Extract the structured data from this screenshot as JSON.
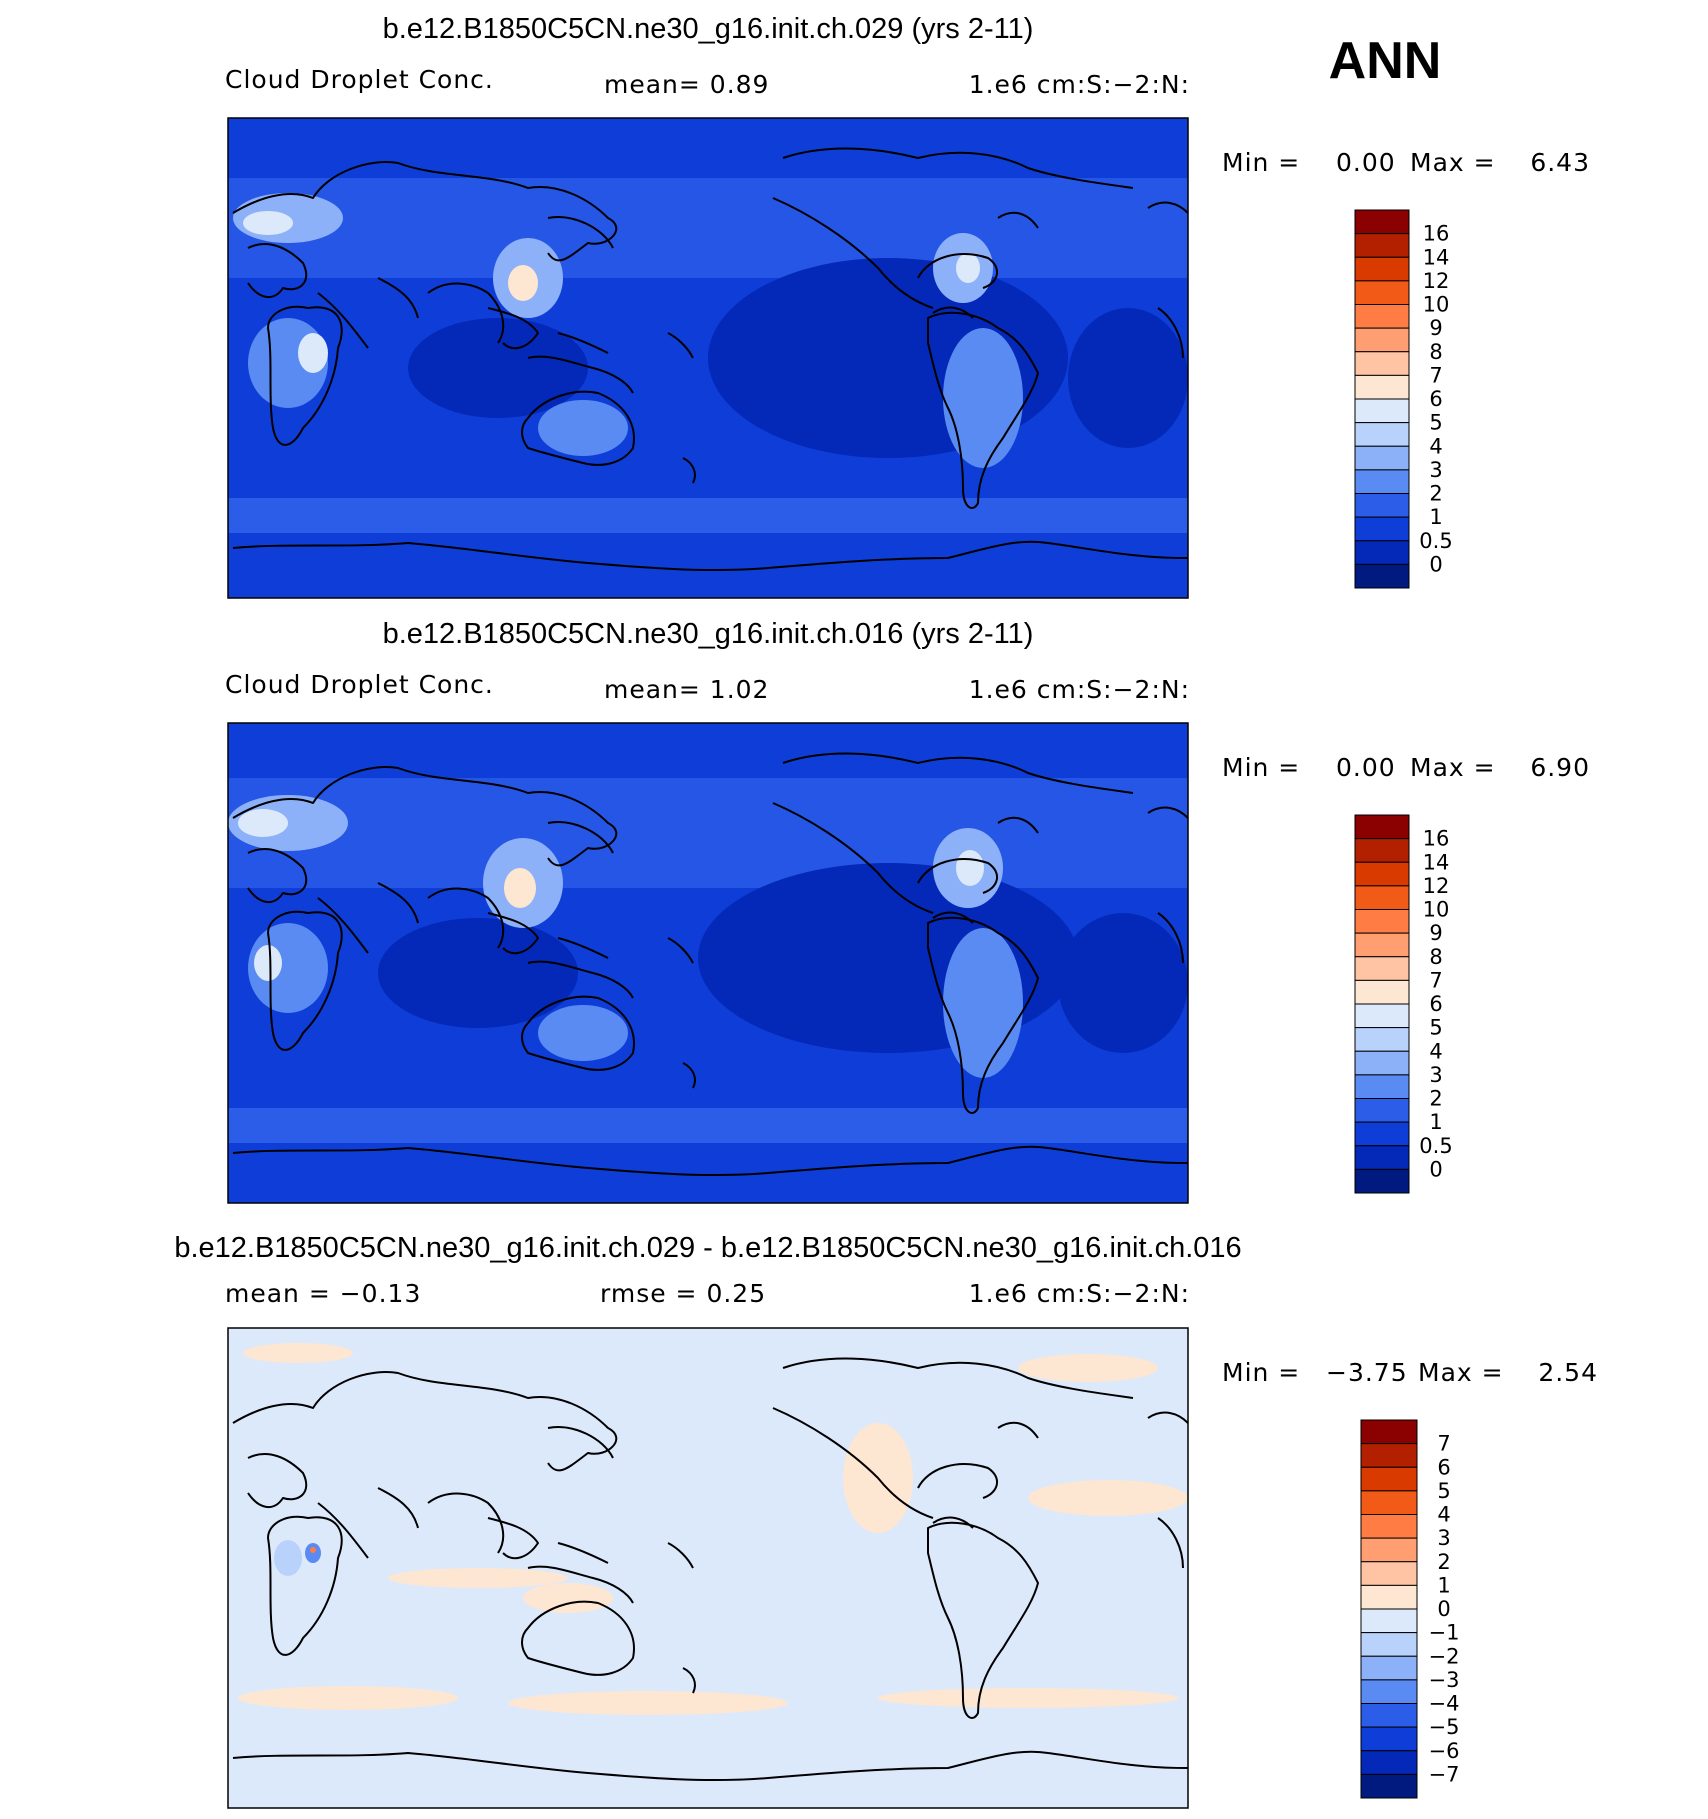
{
  "season_label": "ANN",
  "panels": [
    {
      "title": "b.e12.B1850C5CN.ne30_g16.init.ch.029 (yrs 2-11)",
      "left_label": "Cloud Droplet Conc.",
      "mid_label": "mean=    0.89",
      "right_label": "1.e6 cm:S:−2:N:",
      "min_text": "Min =",
      "min_value": "0.00",
      "max_text": "Max =",
      "max_value": "6.43",
      "field_min": 0.0,
      "field_max": 6.43,
      "colorbar": {
        "labels": [
          "16",
          "14",
          "12",
          "10",
          "9",
          "8",
          "7",
          "6",
          "5",
          "4",
          "3",
          "2",
          "1",
          "0.5",
          "0"
        ],
        "colors": [
          "#8b0000",
          "#b22000",
          "#d93a00",
          "#f25a18",
          "#ff7d44",
          "#ff9e70",
          "#ffc4a4",
          "#fde6d2",
          "#dce9fb",
          "#b9d2fb",
          "#8db1f8",
          "#5a8bf2",
          "#2c5de8",
          "#0e3ed7",
          "#0428b8",
          "#001a80"
        ]
      }
    },
    {
      "title": "b.e12.B1850C5CN.ne30_g16.init.ch.016 (yrs 2-11)",
      "left_label": "Cloud Droplet Conc.",
      "mid_label": "mean=    1.02",
      "right_label": "1.e6 cm:S:−2:N:",
      "min_text": "Min =",
      "min_value": "0.00",
      "max_text": "Max =",
      "max_value": "6.90",
      "field_min": 0.0,
      "field_max": 6.9,
      "colorbar": {
        "labels": [
          "16",
          "14",
          "12",
          "10",
          "9",
          "8",
          "7",
          "6",
          "5",
          "4",
          "3",
          "2",
          "1",
          "0.5",
          "0"
        ],
        "colors": [
          "#8b0000",
          "#b22000",
          "#d93a00",
          "#f25a18",
          "#ff7d44",
          "#ff9e70",
          "#ffc4a4",
          "#fde6d2",
          "#dce9fb",
          "#b9d2fb",
          "#8db1f8",
          "#5a8bf2",
          "#2c5de8",
          "#0e3ed7",
          "#0428b8",
          "#001a80"
        ]
      }
    },
    {
      "title": "b.e12.B1850C5CN.ne30_g16.init.ch.029 - b.e12.B1850C5CN.ne30_g16.init.ch.016",
      "left_label": "mean =   −0.13",
      "mid_label": "rmse =    0.25",
      "right_label": "1.e6 cm:S:−2:N:",
      "min_text": "Min =",
      "min_value": "−3.75",
      "max_text": "Max =",
      "max_value": "2.54",
      "field_min": -3.75,
      "field_max": 2.54,
      "colorbar": {
        "labels": [
          "7",
          "6",
          "5",
          "4",
          "3",
          "2",
          "1",
          "0",
          "−1",
          "−2",
          "−3",
          "−4",
          "−5",
          "−6",
          "−7"
        ],
        "colors": [
          "#8b0000",
          "#b22000",
          "#d93a00",
          "#f25a18",
          "#ff7d44",
          "#ff9e70",
          "#ffc4a4",
          "#fde6d2",
          "#dce9fb",
          "#b9d2fb",
          "#8db1f8",
          "#5a8bf2",
          "#2c5de8",
          "#0e3ed7",
          "#0428b8",
          "#001a80"
        ]
      }
    }
  ]
}
